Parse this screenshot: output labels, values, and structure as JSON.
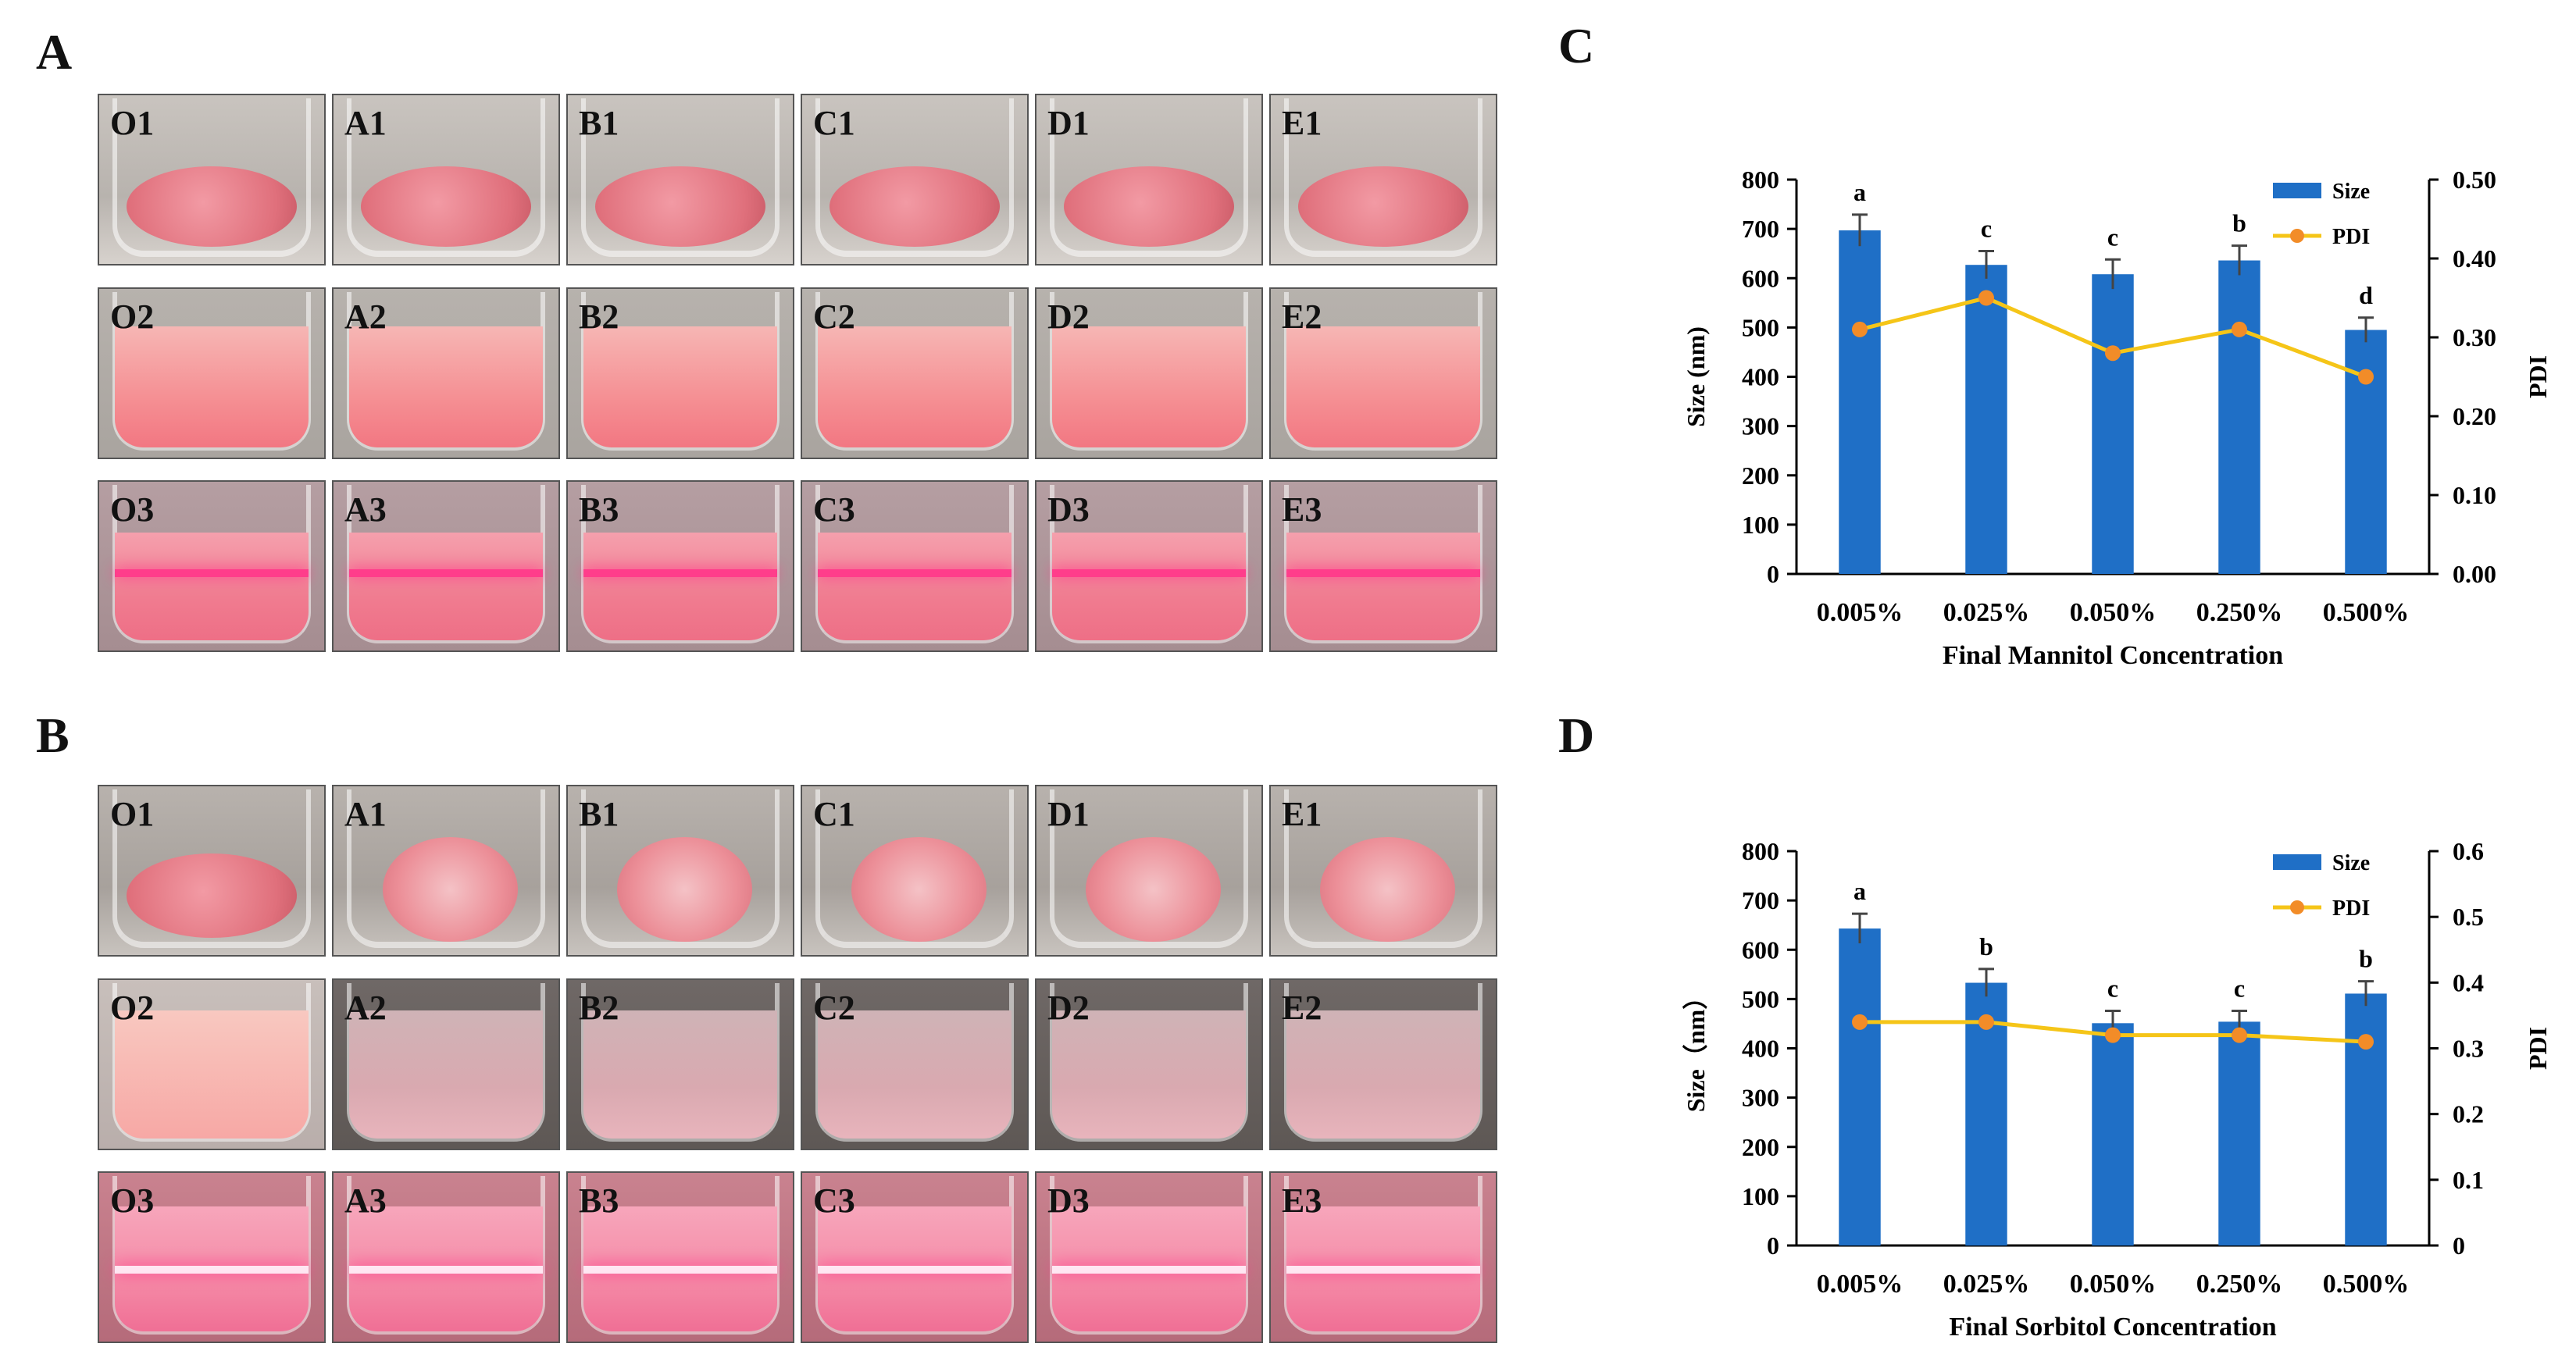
{
  "panels": {
    "a": "A",
    "b": "B",
    "c": "C",
    "d": "D"
  },
  "photos": {
    "A": {
      "row1": [
        "O1",
        "A1",
        "B1",
        "C1",
        "D1",
        "E1"
      ],
      "row2": [
        "O2",
        "A2",
        "B2",
        "C2",
        "D2",
        "E2"
      ],
      "row3": [
        "O3",
        "A3",
        "B3",
        "C3",
        "D3",
        "E3"
      ]
    },
    "B": {
      "row1": [
        "O1",
        "A1",
        "B1",
        "C1",
        "D1",
        "E1"
      ],
      "row2": [
        "O2",
        "A2",
        "B2",
        "C2",
        "D2",
        "E2"
      ],
      "row3": [
        "O3",
        "A3",
        "B3",
        "C3",
        "D3",
        "E3"
      ]
    }
  },
  "colors": {
    "bar": "#1f6fc6",
    "line": "#f5c518",
    "marker": "#f28c28",
    "pink": "#f07f8c",
    "neon": "#ff3d8b"
  },
  "chart_data": [
    {
      "id": "C",
      "type": "bar",
      "categories": [
        "0.005%",
        "0.025%",
        "0.050%",
        "0.250%",
        "0.500%"
      ],
      "series": [
        {
          "name": "Size",
          "axis": "left",
          "values": [
            697,
            627,
            608,
            636,
            495
          ],
          "errors": [
            32,
            28,
            30,
            30,
            25
          ],
          "letters": [
            "a",
            "c",
            "c",
            "b",
            "d"
          ]
        },
        {
          "name": "PDI",
          "axis": "right",
          "type": "line",
          "values": [
            0.31,
            0.35,
            0.28,
            0.31,
            0.25
          ]
        }
      ],
      "xlabel": "Final Mannitol Concentration",
      "ylabel": "Size (nm)",
      "y2label": "PDI",
      "ylim": [
        0,
        800
      ],
      "yticks": [
        "0",
        "100",
        "200",
        "300",
        "400",
        "500",
        "600",
        "700",
        "800"
      ],
      "y2lim": [
        0,
        0.5
      ],
      "y2ticks": [
        "0.00",
        "0.10",
        "0.20",
        "0.30",
        "0.40",
        "0.50"
      ],
      "legend": [
        "Size",
        "PDI"
      ]
    },
    {
      "id": "D",
      "type": "bar",
      "categories": [
        "0.005%",
        "0.025%",
        "0.050%",
        "0.250%",
        "0.500%"
      ],
      "series": [
        {
          "name": "Size",
          "axis": "left",
          "values": [
            643,
            533,
            451,
            454,
            511
          ],
          "errors": [
            30,
            28,
            25,
            22,
            25
          ],
          "letters": [
            "a",
            "b",
            "c",
            "c",
            "b"
          ]
        },
        {
          "name": "PDI",
          "axis": "right",
          "type": "line",
          "values": [
            0.34,
            0.34,
            0.32,
            0.32,
            0.31
          ]
        }
      ],
      "xlabel": "Final Sorbitol Concentration",
      "ylabel": "Size（nm）",
      "y2label": "PDI",
      "ylim": [
        0,
        800
      ],
      "yticks": [
        "0",
        "100",
        "200",
        "300",
        "400",
        "500",
        "600",
        "700",
        "800"
      ],
      "y2lim": [
        0,
        0.6
      ],
      "y2ticks": [
        "0",
        "0.1",
        "0.2",
        "0.3",
        "0.4",
        "0.5",
        "0.6"
      ],
      "legend": [
        "Size",
        "PDI"
      ]
    }
  ]
}
